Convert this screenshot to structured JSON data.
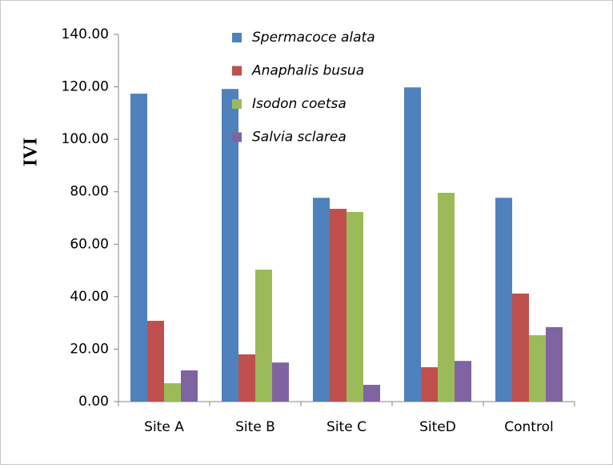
{
  "chart_data": {
    "type": "bar",
    "y_label": "IVI",
    "categories": [
      "Site A",
      "Site B",
      "Site C",
      "SiteD",
      "Control"
    ],
    "series": [
      {
        "name": "Spermacoce  alata",
        "color": "#4f81bd",
        "values": [
          117.4,
          119.2,
          77.7,
          119.8,
          77.7
        ]
      },
      {
        "name": "Anaphalis busua",
        "color": "#c0504d",
        "values": [
          30.8,
          18.0,
          73.5,
          13.1,
          41.2
        ]
      },
      {
        "name": "Isodon coetsa",
        "color": "#9bbb59",
        "values": [
          7.0,
          50.3,
          72.3,
          79.6,
          25.3
        ]
      },
      {
        "name": "Salvia sclarea",
        "color": "#8064a2",
        "values": [
          11.9,
          14.9,
          6.4,
          15.5,
          28.4
        ]
      }
    ],
    "ylim": [
      0,
      140
    ],
    "yticks": [
      {
        "value": 0,
        "label": "0.00"
      },
      {
        "value": 20,
        "label": "20.00"
      },
      {
        "value": 40,
        "label": "40.00"
      },
      {
        "value": 60,
        "label": "60.00"
      },
      {
        "value": 80,
        "label": "80.00"
      },
      {
        "value": 100,
        "label": "100.00"
      },
      {
        "value": 120,
        "label": "120.00"
      },
      {
        "value": 140,
        "label": "140.00"
      }
    ],
    "grid": false,
    "legend": "top"
  }
}
